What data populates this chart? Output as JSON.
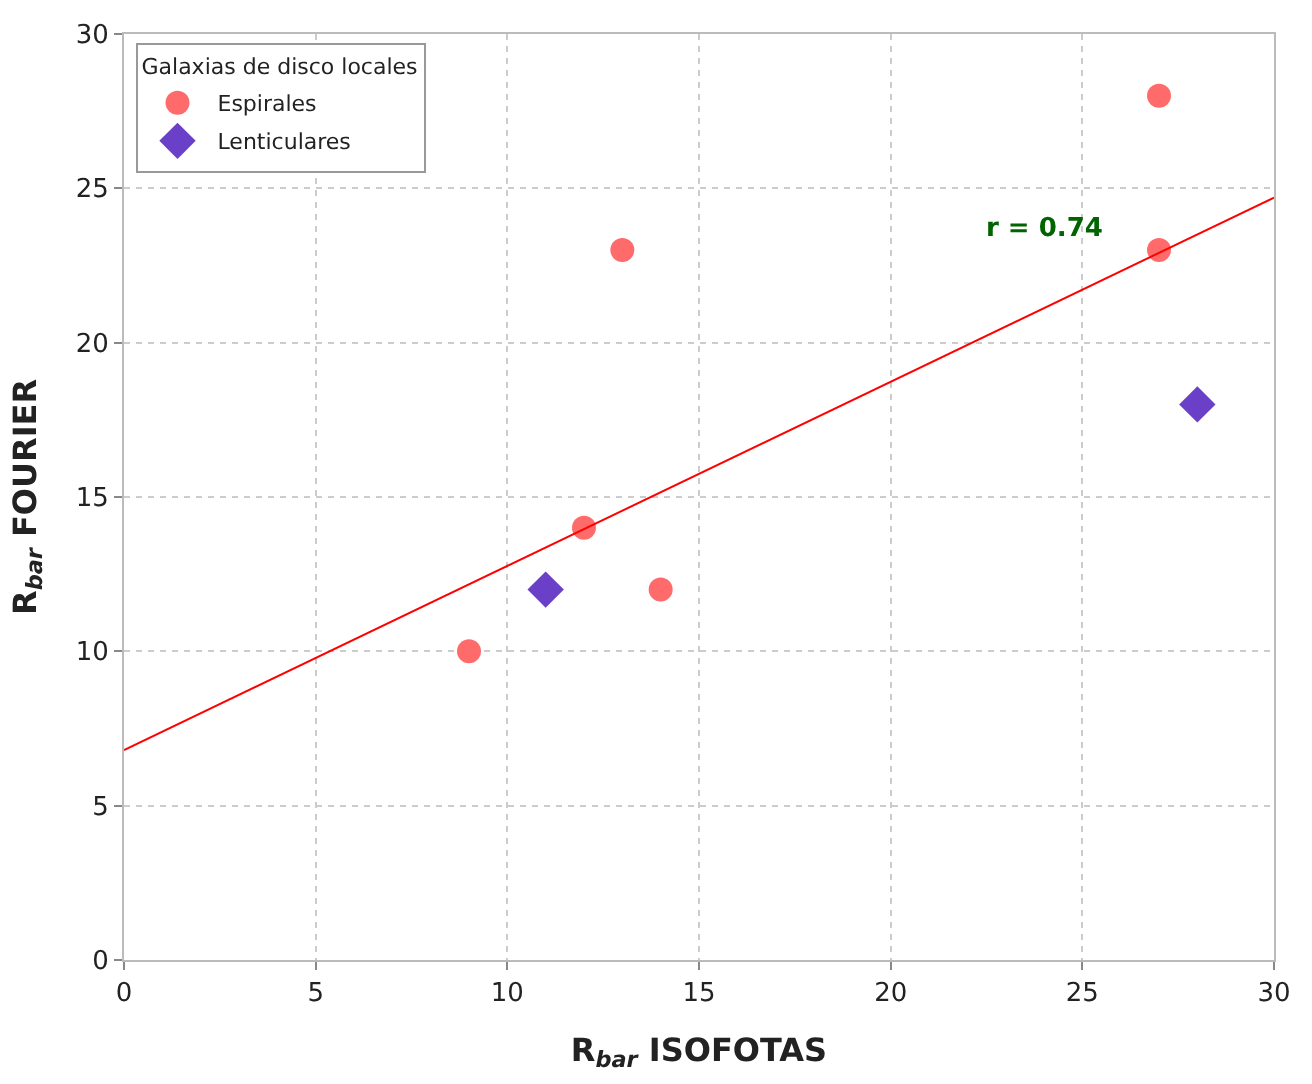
{
  "chart_data": {
    "type": "scatter",
    "xlabel": "R$_{bar}$ ISOFOTAS",
    "ylabel": "R$_{bar}$ FOURIER",
    "legend_title": "Galaxias de disco locales",
    "series": [
      {
        "name": "Espirales",
        "color": "#ff6b6b",
        "marker": "circle",
        "x": [
          9,
          12,
          13,
          14,
          27,
          27
        ],
        "values": [
          10,
          14,
          23,
          12,
          23,
          28
        ]
      },
      {
        "name": "Lenticulares",
        "color": "#6a40c8",
        "marker": "diamond",
        "x": [
          11,
          28
        ],
        "values": [
          12,
          18
        ]
      },
      {
        "type": "line",
        "color": "#ff0000",
        "marker": "none",
        "x": [
          0,
          30
        ],
        "values": [
          6.8,
          24.7
        ]
      }
    ],
    "annotations": [
      "r = 0.74"
    ],
    "xlim": [
      0,
      30
    ],
    "ylim": [
      0,
      30
    ],
    "xticks": [
      0,
      5,
      10,
      15,
      20,
      25,
      30
    ],
    "yticks": [
      0,
      5,
      10,
      15,
      20,
      25,
      30
    ],
    "grid": true,
    "legend": "top left"
  }
}
